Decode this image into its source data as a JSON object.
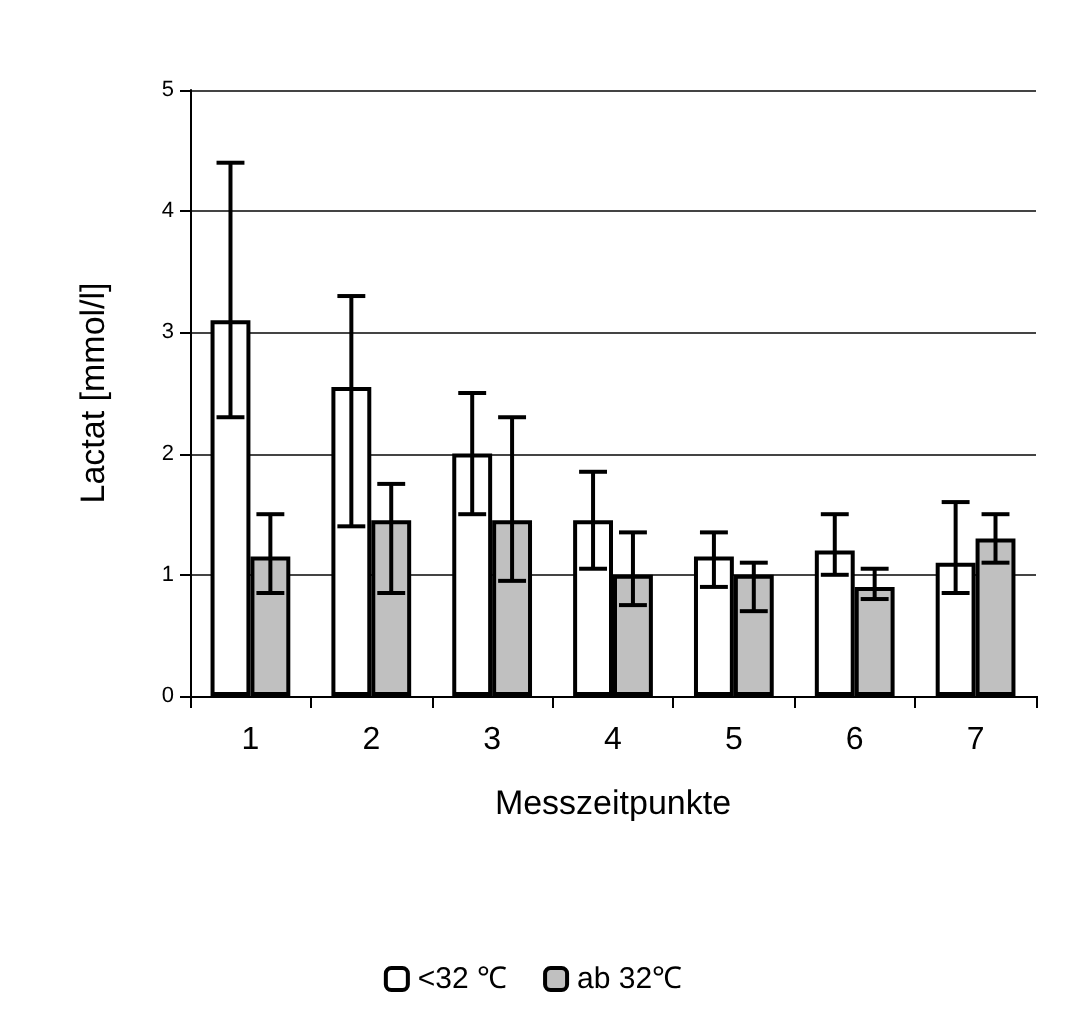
{
  "chart_data": {
    "type": "bar",
    "xlabel": "Messzeitpunkte",
    "ylabel": "Lactat [mmol/l]",
    "categories": [
      "1",
      "2",
      "3",
      "4",
      "5",
      "6",
      "7"
    ],
    "series": [
      {
        "name": "<32 ℃",
        "color": "#ffffff",
        "values": [
          3.1,
          2.55,
          2.0,
          1.45,
          1.15,
          1.2,
          1.1
        ],
        "errors": [
          [
            2.3,
            4.4
          ],
          [
            1.4,
            3.3
          ],
          [
            1.5,
            2.5
          ],
          [
            1.05,
            1.85
          ],
          [
            0.9,
            1.35
          ],
          [
            1.0,
            1.5
          ],
          [
            0.85,
            1.6
          ]
        ]
      },
      {
        "name": "ab 32℃",
        "color": "#c0c0c0",
        "values": [
          1.15,
          1.45,
          1.45,
          1.0,
          1.0,
          0.9,
          1.3
        ],
        "errors": [
          [
            0.85,
            1.5
          ],
          [
            0.85,
            1.75
          ],
          [
            0.95,
            2.3
          ],
          [
            0.75,
            1.35
          ],
          [
            0.7,
            1.1
          ],
          [
            0.8,
            1.05
          ],
          [
            1.1,
            1.5
          ]
        ]
      }
    ],
    "ylim": [
      0,
      5
    ],
    "yticks": [
      0,
      1,
      2,
      3,
      4,
      5
    ],
    "grid": "y",
    "legend": "bottom"
  }
}
